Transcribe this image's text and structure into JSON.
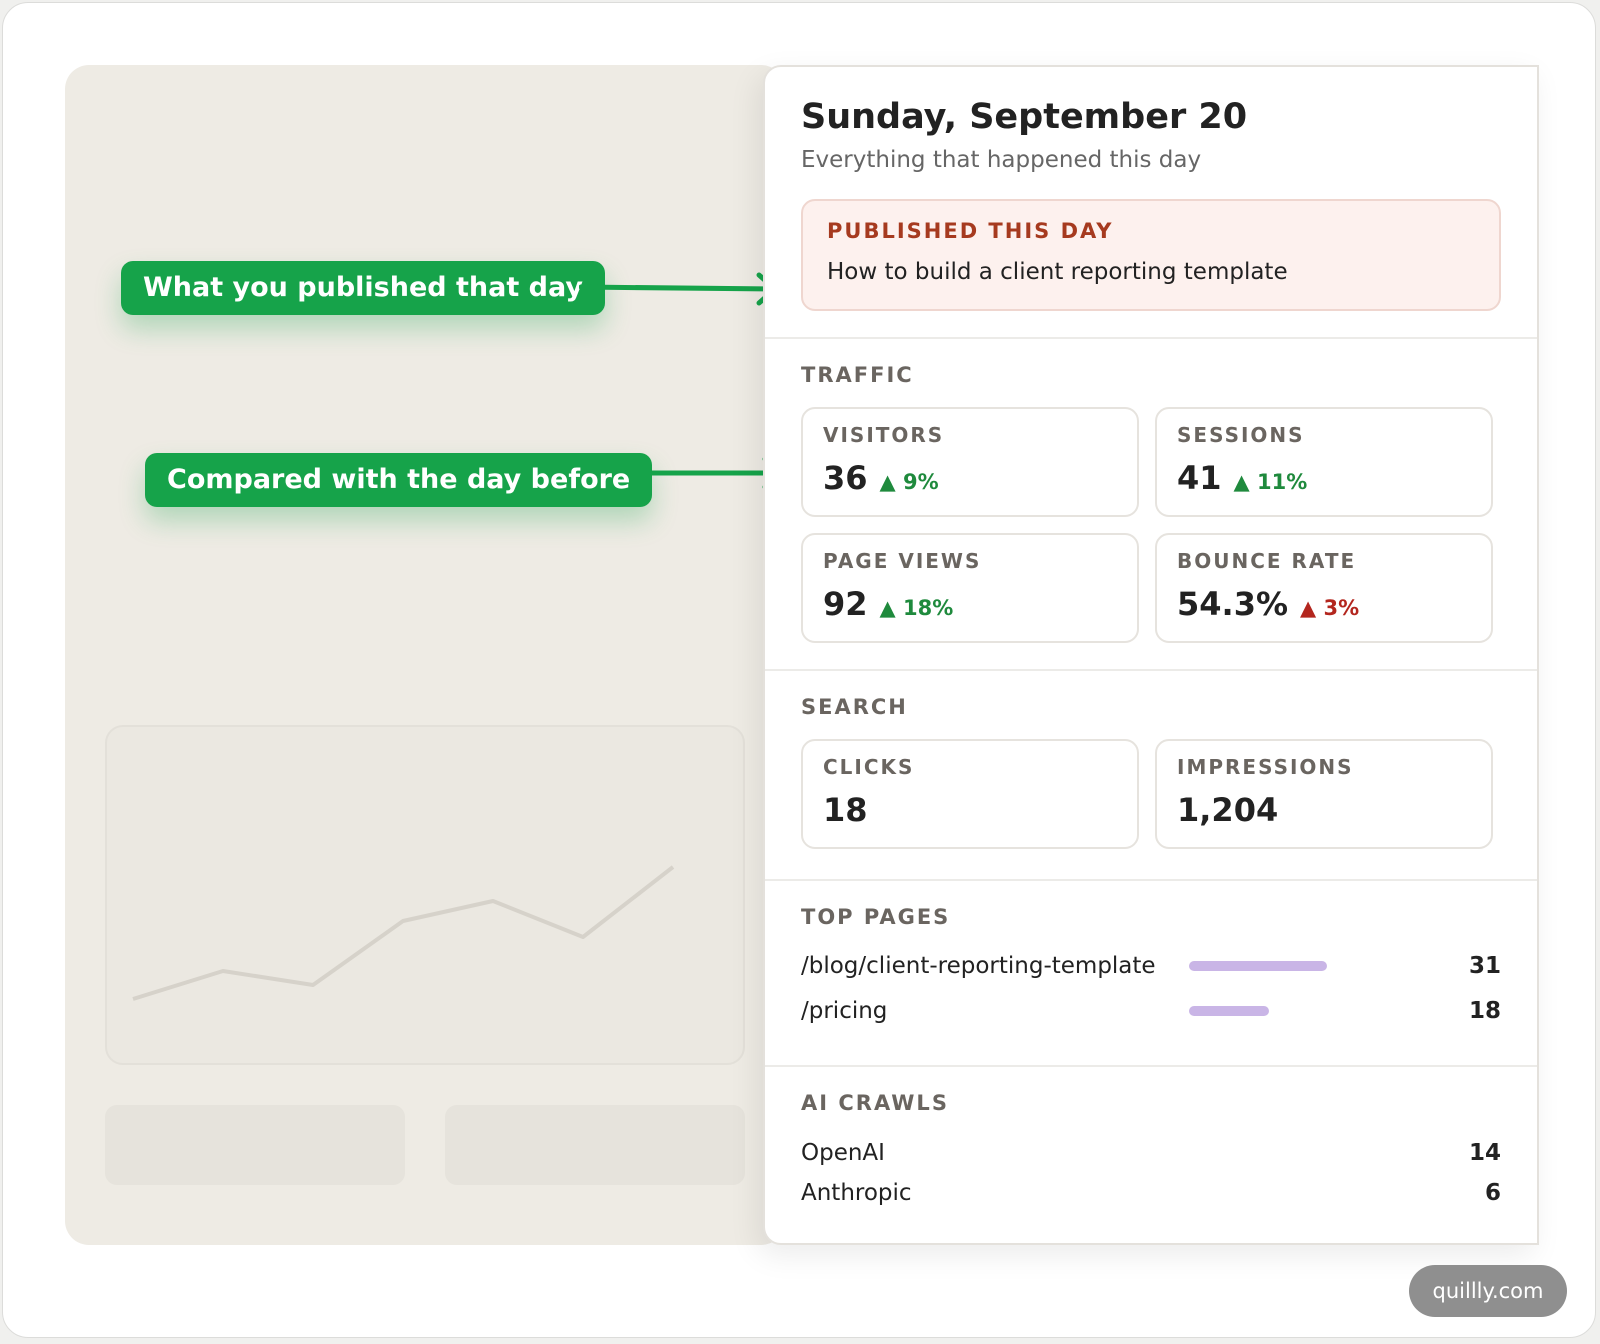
{
  "callouts": {
    "published": "What you published that day",
    "compare": "Compared with the day before"
  },
  "panel": {
    "date": "Sunday, September 20",
    "subtitle": "Everything that happened this day",
    "published": {
      "label": "PUBLISHED THIS DAY",
      "title": "How to build a client reporting template"
    },
    "traffic": {
      "label": "TRAFFIC",
      "cards": [
        {
          "label": "VISITORS",
          "value": "36",
          "delta": "▲ 9%",
          "tone": "up"
        },
        {
          "label": "SESSIONS",
          "value": "41",
          "delta": "▲ 11%",
          "tone": "up"
        },
        {
          "label": "PAGE VIEWS",
          "value": "92",
          "delta": "▲ 18%",
          "tone": "up"
        },
        {
          "label": "BOUNCE RATE",
          "value": "54.3%",
          "delta": "▲ 3%",
          "tone": "bad"
        }
      ]
    },
    "search": {
      "label": "SEARCH",
      "cards": [
        {
          "label": "CLICKS",
          "value": "18"
        },
        {
          "label": "IMPRESSIONS",
          "value": "1,204"
        }
      ]
    },
    "top_pages": {
      "label": "TOP PAGES",
      "rows": [
        {
          "path": "/blog/client-reporting-template",
          "views": "31",
          "share": 1.0
        },
        {
          "path": "/pricing",
          "views": "18",
          "share": 0.58
        }
      ]
    },
    "ai_crawls": {
      "label": "AI CRAWLS",
      "rows": [
        {
          "name": "OpenAI",
          "count": "14"
        },
        {
          "name": "Anthropic",
          "count": "6"
        }
      ]
    }
  },
  "brand": "quillly.com",
  "colors": {
    "callout": "#16a34a",
    "delta_up": "#1f8a3d",
    "delta_bad": "#b3261e",
    "published_accent": "#a63a1f",
    "bar": "#c9b5e6"
  }
}
